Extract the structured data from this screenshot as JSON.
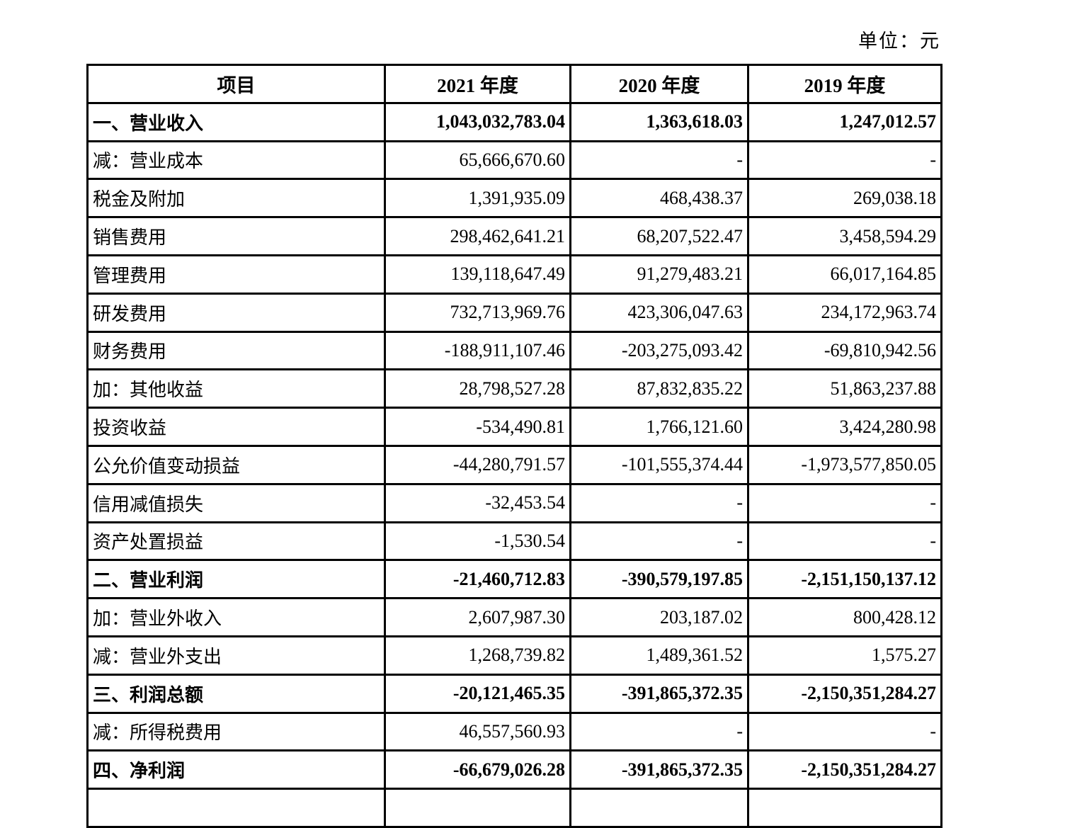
{
  "unit_label": "单位：元",
  "table": {
    "columns": [
      "项目",
      "2021 年度",
      "2020 年度",
      "2019 年度"
    ],
    "rows": [
      {
        "label": "一、营业收入",
        "values": [
          "1,043,032,783.04",
          "1,363,618.03",
          "1,247,012.57"
        ],
        "bold": true
      },
      {
        "label": "减：营业成本",
        "values": [
          "65,666,670.60",
          "-",
          "-"
        ],
        "bold": false
      },
      {
        "label": "税金及附加",
        "values": [
          "1,391,935.09",
          "468,438.37",
          "269,038.18"
        ],
        "bold": false
      },
      {
        "label": "销售费用",
        "values": [
          "298,462,641.21",
          "68,207,522.47",
          "3,458,594.29"
        ],
        "bold": false
      },
      {
        "label": "管理费用",
        "values": [
          "139,118,647.49",
          "91,279,483.21",
          "66,017,164.85"
        ],
        "bold": false
      },
      {
        "label": "研发费用",
        "values": [
          "732,713,969.76",
          "423,306,047.63",
          "234,172,963.74"
        ],
        "bold": false
      },
      {
        "label": "财务费用",
        "values": [
          "-188,911,107.46",
          "-203,275,093.42",
          "-69,810,942.56"
        ],
        "bold": false
      },
      {
        "label": "加：其他收益",
        "values": [
          "28,798,527.28",
          "87,832,835.22",
          "51,863,237.88"
        ],
        "bold": false
      },
      {
        "label": "投资收益",
        "values": [
          "-534,490.81",
          "1,766,121.60",
          "3,424,280.98"
        ],
        "bold": false
      },
      {
        "label": "公允价值变动损益",
        "values": [
          "-44,280,791.57",
          "-101,555,374.44",
          "-1,973,577,850.05"
        ],
        "bold": false
      },
      {
        "label": "信用减值损失",
        "values": [
          "-32,453.54",
          "-",
          "-"
        ],
        "bold": false
      },
      {
        "label": "资产处置损益",
        "values": [
          "-1,530.54",
          "-",
          "-"
        ],
        "bold": false
      },
      {
        "label": "二、营业利润",
        "values": [
          "-21,460,712.83",
          "-390,579,197.85",
          "-2,151,150,137.12"
        ],
        "bold": true
      },
      {
        "label": "加：营业外收入",
        "values": [
          "2,607,987.30",
          "203,187.02",
          "800,428.12"
        ],
        "bold": false
      },
      {
        "label": "减：营业外支出",
        "values": [
          "1,268,739.82",
          "1,489,361.52",
          "1,575.27"
        ],
        "bold": false
      },
      {
        "label": "三、利润总额",
        "values": [
          "-20,121,465.35",
          "-391,865,372.35",
          "-2,150,351,284.27"
        ],
        "bold": true
      },
      {
        "label": "减：所得税费用",
        "values": [
          "46,557,560.93",
          "-",
          "-"
        ],
        "bold": false
      },
      {
        "label": "四、净利润",
        "values": [
          "-66,679,026.28",
          "-391,865,372.35",
          "-2,150,351,284.27"
        ],
        "bold": true
      }
    ]
  }
}
